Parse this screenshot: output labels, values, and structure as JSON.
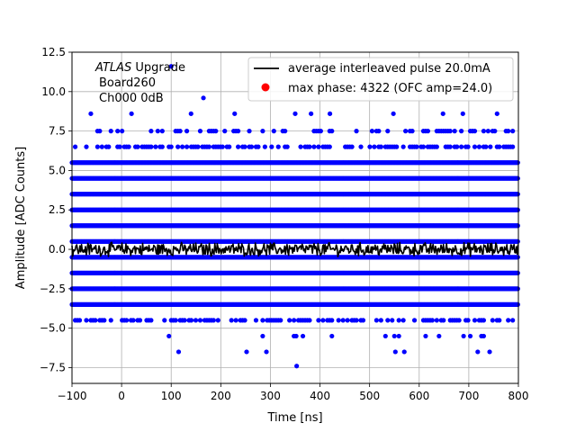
{
  "chart_data": {
    "type": "scatter",
    "xlabel": "Time [ns]",
    "ylabel": "Amplitude [ADC Counts]",
    "xlim": [
      -100,
      800
    ],
    "ylim": [
      -8.5,
      12.5
    ],
    "xticks": [
      -100,
      0,
      100,
      200,
      300,
      400,
      500,
      600,
      700,
      800
    ],
    "yticks": [
      -7.5,
      -5.0,
      -2.5,
      0.0,
      2.5,
      5.0,
      7.5,
      10.0,
      12.5
    ],
    "grid": true,
    "legend_position": "top-right",
    "annotation": {
      "italic": "ATLAS",
      "rest": " Upgrade",
      "line2": "Board260",
      "line3": "Ch000 0dB"
    },
    "series": [
      {
        "name": "average interleaved pulse 20.0mA",
        "kind": "line",
        "color": "#000000",
        "x_range": [
          -100,
          800
        ],
        "y_mean": 0.0,
        "y_spread": 0.35
      },
      {
        "name": "max phase: 4322 (OFC amp=24.0)",
        "kind": "marker",
        "color": "#ff0000"
      },
      {
        "kind": "scatter",
        "color": "#0000ff",
        "dense_levels": [
          5.5,
          4.5,
          3.5,
          2.5,
          1.5,
          0.5,
          -0.5,
          -1.5,
          -2.5,
          -3.5
        ],
        "sparse_levels": [
          {
            "y": 6.5,
            "density": 0.55
          },
          {
            "y": 7.5,
            "density": 0.3
          },
          {
            "y": -4.5,
            "density": 0.5
          },
          {
            "y": -5.5,
            "density": 0.06
          }
        ],
        "outliers": [
          {
            "x": 100,
            "y": 11.6
          },
          {
            "x": 165,
            "y": 9.6
          },
          {
            "x": -62,
            "y": 8.6
          },
          {
            "x": 20,
            "y": 8.6
          },
          {
            "x": 140,
            "y": 8.6
          },
          {
            "x": 228,
            "y": 8.6
          },
          {
            "x": 350,
            "y": 8.6
          },
          {
            "x": 382,
            "y": 8.6
          },
          {
            "x": 420,
            "y": 8.6
          },
          {
            "x": 548,
            "y": 8.6
          },
          {
            "x": 648,
            "y": 8.6
          },
          {
            "x": 688,
            "y": 8.6
          },
          {
            "x": 757,
            "y": 8.6
          },
          {
            "x": 115,
            "y": -6.5
          },
          {
            "x": 252,
            "y": -6.5
          },
          {
            "x": 292,
            "y": -6.5
          },
          {
            "x": 552,
            "y": -6.5
          },
          {
            "x": 570,
            "y": -6.5
          },
          {
            "x": 718,
            "y": -6.5
          },
          {
            "x": 742,
            "y": -6.5
          },
          {
            "x": 353,
            "y": -7.4
          }
        ]
      }
    ]
  }
}
